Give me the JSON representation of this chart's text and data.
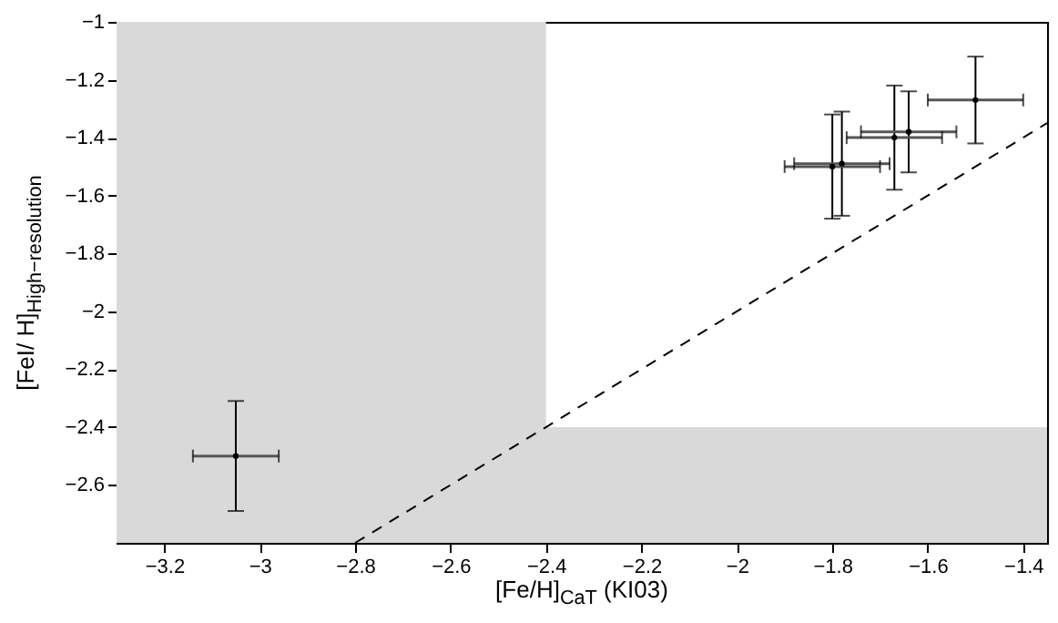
{
  "chart_data": {
    "type": "scatter",
    "xlabel": "[Fe/H]$_{CaT}$ (KI03)",
    "ylabel": "[FeI/ H]$_{High−resolution}$",
    "xlim": [
      -3.3,
      -1.35
    ],
    "ylim": [
      -2.8,
      -1
    ],
    "xticks": [
      -3.2,
      -3,
      -2.8,
      -2.6,
      -2.4,
      -2.2,
      -2,
      -1.8,
      -1.6,
      -1.4
    ],
    "yticks": [
      -2.6,
      -2.4,
      -2.2,
      -2,
      -1.8,
      -1.6,
      -1.4,
      -1.2,
      -1
    ],
    "grid": false,
    "bands": [
      {
        "axis": "x",
        "from": -3.3,
        "to": -2.4,
        "color": "#d9d9d9"
      },
      {
        "axis": "y",
        "from": -2.8,
        "to": -2.4,
        "color": "#d9d9d9"
      }
    ],
    "series": [
      {
        "color": "#000000",
        "marker": "circle",
        "x": [
          -3.05,
          -1.8,
          -1.78,
          -1.67,
          -1.64,
          -1.5
        ],
        "values": [
          -2.5,
          -1.5,
          -1.49,
          -1.4,
          -1.38,
          -1.27
        ],
        "errors": [
          0.19,
          0.18,
          0.18,
          0.18,
          0.14,
          0.15
        ],
        "xerrors": [
          0.09,
          0.1,
          0.1,
          0.1,
          0.1,
          0.1
        ]
      },
      {
        "type": "line",
        "color": "#000000",
        "marker": "none",
        "line_style": "dashed",
        "x": [
          -2.8,
          -1.35
        ],
        "values": [
          -2.8,
          -1.35
        ]
      }
    ]
  }
}
